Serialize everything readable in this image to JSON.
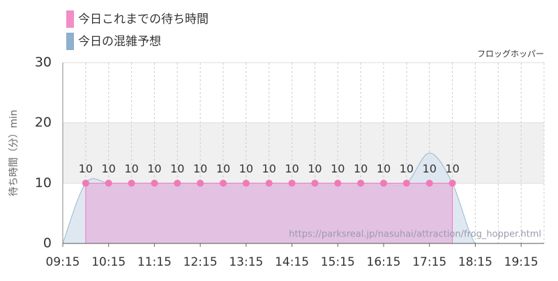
{
  "chart_data": {
    "type": "area",
    "legend": [
      "今日これまでの待ち時間",
      "今日の混雑予想"
    ],
    "attraction": "フロッグホッパー",
    "y_label": "待ち時間（分）min",
    "source": "https://parksreal.jp/nasuhai/attraction/frog_hopper.html",
    "xlim": [
      "09:15",
      "19:45"
    ],
    "xticks": [
      "09:15",
      "10:15",
      "11:15",
      "12:15",
      "13:15",
      "14:15",
      "15:15",
      "16:15",
      "17:15",
      "18:15",
      "19:15"
    ],
    "ylim": [
      0,
      30
    ],
    "yticks": [
      0,
      10,
      20,
      30
    ],
    "shaded_band": [
      10,
      20
    ],
    "grid": true,
    "series": [
      {
        "name": "今日これまでの待ち時間",
        "color": "#f07ab8",
        "fill": "#e2bde0",
        "data_labels": true,
        "x": [
          "09:45",
          "10:15",
          "10:45",
          "11:15",
          "11:45",
          "12:15",
          "12:45",
          "13:15",
          "13:45",
          "14:15",
          "14:45",
          "15:15",
          "15:45",
          "16:15",
          "16:45",
          "17:15",
          "17:45"
        ],
        "values": [
          10,
          10,
          10,
          10,
          10,
          10,
          10,
          10,
          10,
          10,
          10,
          10,
          10,
          10,
          10,
          10,
          10
        ]
      },
      {
        "name": "今日の混雑予想",
        "color": "#9bb6cc",
        "fill": "#dbe6ef",
        "x": [
          "09:15",
          "09:45",
          "10:15",
          "10:45",
          "11:15",
          "11:45",
          "12:15",
          "12:45",
          "13:15",
          "13:45",
          "14:15",
          "14:45",
          "15:15",
          "15:45",
          "16:15",
          "16:45",
          "17:15",
          "17:45",
          "18:15",
          "18:45",
          "19:15",
          "19:45"
        ],
        "values": [
          0,
          10,
          10,
          10,
          10,
          10,
          10,
          10,
          10,
          10,
          10,
          10,
          10,
          10,
          10,
          10,
          15,
          10,
          0,
          0,
          0,
          0
        ]
      }
    ]
  }
}
